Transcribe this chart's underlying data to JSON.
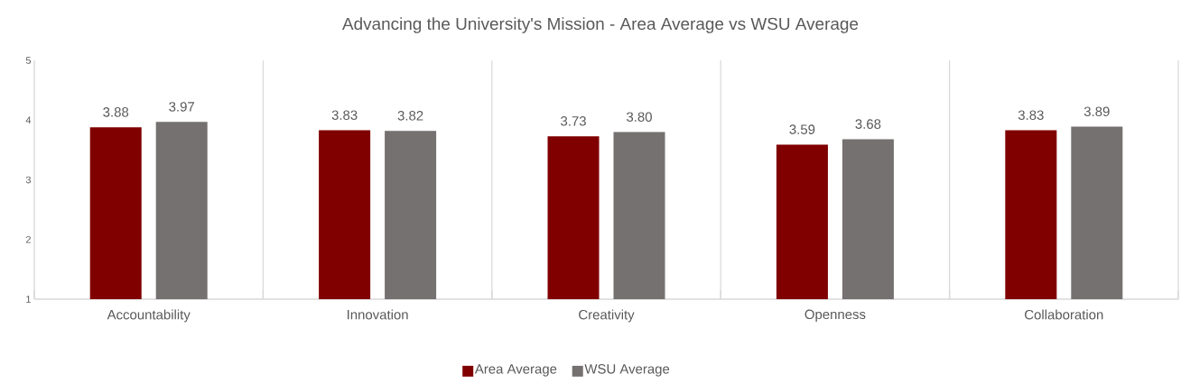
{
  "chart_data": {
    "type": "bar",
    "title": "Advancing the University's Mission - Area Average vs WSU Average",
    "categories": [
      "Accountability",
      "Innovation",
      "Creativity",
      "Openness",
      "Collaboration"
    ],
    "series": [
      {
        "name": "Area Average",
        "color": "#800000",
        "values": [
          3.88,
          3.83,
          3.73,
          3.59,
          3.83
        ],
        "value_labels": [
          "3.88",
          "3.83",
          "3.73",
          "3.59",
          "3.83"
        ]
      },
      {
        "name": "WSU Average",
        "color": "#767171",
        "values": [
          3.97,
          3.82,
          3.8,
          3.68,
          3.89
        ],
        "value_labels": [
          "3.97",
          "3.82",
          "3.80",
          "3.68",
          "3.89"
        ]
      }
    ],
    "ylim": [
      1,
      5
    ],
    "yticks": [
      1,
      2,
      3,
      4,
      5
    ],
    "grid": "x",
    "legend": "bottom"
  }
}
